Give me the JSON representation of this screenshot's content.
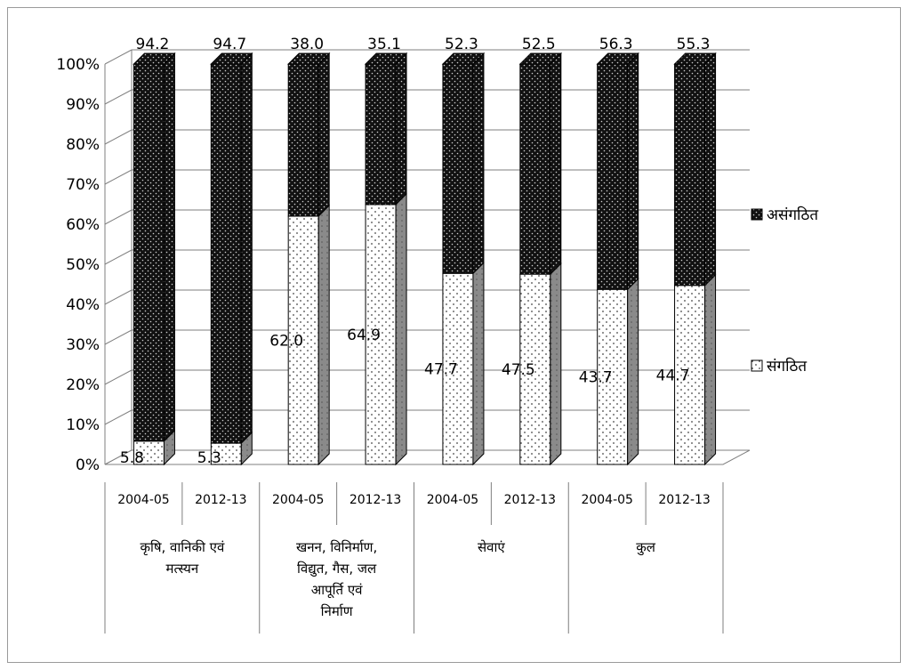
{
  "chart_data": {
    "type": "bar",
    "stacked": true,
    "percent_stacked": true,
    "three_d": true,
    "categories": [
      "2004-05",
      "2012-13",
      "2004-05",
      "2012-13",
      "2004-05",
      "2012-13",
      "2004-05",
      "2012-13"
    ],
    "groups": [
      {
        "label_lines": [
          "कृषि, वानिकी एवं",
          "मत्स्यन"
        ],
        "span": [
          0,
          1
        ]
      },
      {
        "label_lines": [
          "खनन, विनिर्माण,",
          "विद्युत, गैस, जल",
          "आपूर्ति एवं",
          "निर्माण"
        ],
        "span": [
          2,
          3
        ]
      },
      {
        "label_lines": [
          "सेवाएं"
        ],
        "span": [
          4,
          5
        ]
      },
      {
        "label_lines": [
          "कुल"
        ],
        "span": [
          6,
          7
        ]
      }
    ],
    "series": [
      {
        "name": "संगठित",
        "values": [
          5.8,
          5.3,
          62.0,
          64.9,
          47.7,
          47.5,
          43.7,
          44.7
        ],
        "labels": [
          "5.8",
          "5.3",
          "62.0",
          "64.9",
          "47.7",
          "47.5",
          "43.7",
          "44.7"
        ],
        "color": "#ffffff",
        "dot_color": "#444444"
      },
      {
        "name": "असंगठित",
        "values": [
          94.2,
          94.7,
          38.0,
          35.1,
          52.3,
          52.5,
          56.3,
          55.3
        ],
        "labels": [
          "94.2",
          "94.7",
          "38.0",
          "35.1",
          "52.3",
          "52.5",
          "56.3",
          "55.3"
        ],
        "color": "#111111",
        "dot_color": "#cfcfcf"
      }
    ],
    "yticks": [
      "0%",
      "10%",
      "20%",
      "30%",
      "40%",
      "50%",
      "60%",
      "70%",
      "80%",
      "90%",
      "100%"
    ],
    "ylim": [
      0,
      100
    ],
    "grid": true,
    "legend": {
      "position": "right",
      "order": [
        "असंगठित",
        "संगठित"
      ]
    }
  }
}
